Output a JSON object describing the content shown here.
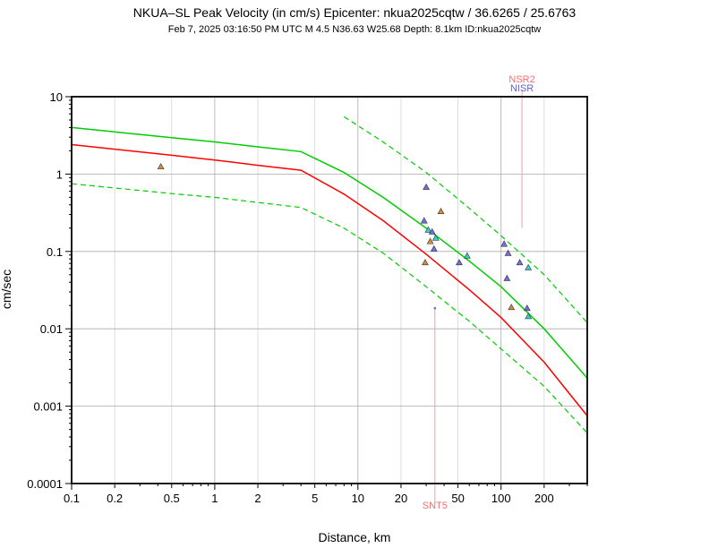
{
  "chart_data": {
    "type": "scatter",
    "title": "NKUA–SL Peak Velocity (in cm/s) Epicenter: nkua2025cqtw / 36.6265 / 25.6763",
    "subtitle": "Feb  7, 2025 03:16:50 PM UTC    M 4.5    N36.63 W25.68    Depth: 8.1km    ID:nkua2025cqtw",
    "xlabel": "Distance, km",
    "ylabel": "cm/sec",
    "x_scale": "log",
    "y_scale": "log",
    "xlim": [
      0.1,
      400
    ],
    "ylim": [
      0.0001,
      10
    ],
    "grid": true,
    "x_ticks": [
      "0.1",
      "0.2",
      "0.5",
      "1",
      "2",
      "5",
      "10",
      "20",
      "50",
      "100",
      "200"
    ],
    "y_ticks": [
      "0.0001",
      "0.001",
      "0.01",
      "0.1",
      "1",
      "10"
    ],
    "colors": {
      "median_curve": "#ff0000",
      "upper_curve": "#00cc00",
      "sigma_curves": "#00cc00",
      "station_blue": "#7070e0",
      "station_orange": "#d88a3c",
      "station_cyan": "#30d0d0",
      "station_line": "#f0a0a0"
    },
    "curves": [
      {
        "style": "median-red",
        "x": [
          0.1,
          0.5,
          1,
          2,
          4,
          8,
          15,
          30,
          60,
          100,
          200,
          400
        ],
        "y": [
          2.4,
          1.75,
          1.52,
          1.3,
          1.12,
          0.55,
          0.25,
          0.092,
          0.032,
          0.014,
          0.0037,
          0.00075
        ]
      },
      {
        "style": "upper-green",
        "x": [
          0.1,
          0.5,
          1,
          2,
          4,
          8,
          15,
          30,
          60,
          100,
          200,
          400
        ],
        "y": [
          4.0,
          2.95,
          2.6,
          2.25,
          1.95,
          1.05,
          0.5,
          0.2,
          0.075,
          0.035,
          0.01,
          0.0023
        ]
      },
      {
        "style": "sigma-green-dashed",
        "x": [
          0.1,
          0.5,
          1,
          2,
          4,
          8,
          15,
          30,
          60,
          100,
          200,
          400
        ],
        "y": [
          0.75,
          0.56,
          0.5,
          0.43,
          0.37,
          0.2,
          0.095,
          0.035,
          0.0125,
          0.0055,
          0.0018,
          0.00045
        ]
      },
      {
        "style": "sigma-green-dashed",
        "x": [
          8,
          15,
          30,
          60,
          100,
          200,
          400
        ],
        "y": [
          5.5,
          2.6,
          1.05,
          0.36,
          0.16,
          0.05,
          0.012
        ]
      }
    ],
    "points": [
      {
        "x": 0.42,
        "y": 1.25,
        "color": "orange"
      },
      {
        "x": 29,
        "y": 0.25,
        "color": "blue"
      },
      {
        "x": 30,
        "y": 0.68,
        "color": "blue"
      },
      {
        "x": 31,
        "y": 0.19,
        "color": "cyan"
      },
      {
        "x": 32,
        "y": 0.135,
        "color": "orange"
      },
      {
        "x": 33,
        "y": 0.18,
        "color": "blue"
      },
      {
        "x": 34,
        "y": 0.108,
        "color": "blue"
      },
      {
        "x": 35,
        "y": 0.15,
        "color": "cyan"
      },
      {
        "x": 29.5,
        "y": 0.072,
        "color": "orange"
      },
      {
        "x": 38,
        "y": 0.33,
        "color": "orange"
      },
      {
        "x": 51,
        "y": 0.072,
        "color": "blue"
      },
      {
        "x": 58,
        "y": 0.088,
        "color": "cyan"
      },
      {
        "x": 105,
        "y": 0.125,
        "color": "blue"
      },
      {
        "x": 112,
        "y": 0.095,
        "color": "blue"
      },
      {
        "x": 110,
        "y": 0.045,
        "color": "blue"
      },
      {
        "x": 118,
        "y": 0.019,
        "color": "orange"
      },
      {
        "x": 135,
        "y": 0.072,
        "color": "blue"
      },
      {
        "x": 155,
        "y": 0.062,
        "color": "cyan"
      },
      {
        "x": 152,
        "y": 0.0185,
        "color": "blue"
      },
      {
        "x": 155,
        "y": 0.0145,
        "color": "cyan"
      }
    ],
    "stations": [
      {
        "name": "NSR2",
        "x": 140,
        "color": "#f07070",
        "line_from": 0.2,
        "line_to": 10
      },
      {
        "name": "NISR",
        "x": 140,
        "color": "#6060e0"
      },
      {
        "name": "SNT5",
        "x": 34.5,
        "color": "#f07070",
        "point_y": 0.0185,
        "line_from": 0.0185,
        "line_to": 0.0001
      }
    ]
  }
}
